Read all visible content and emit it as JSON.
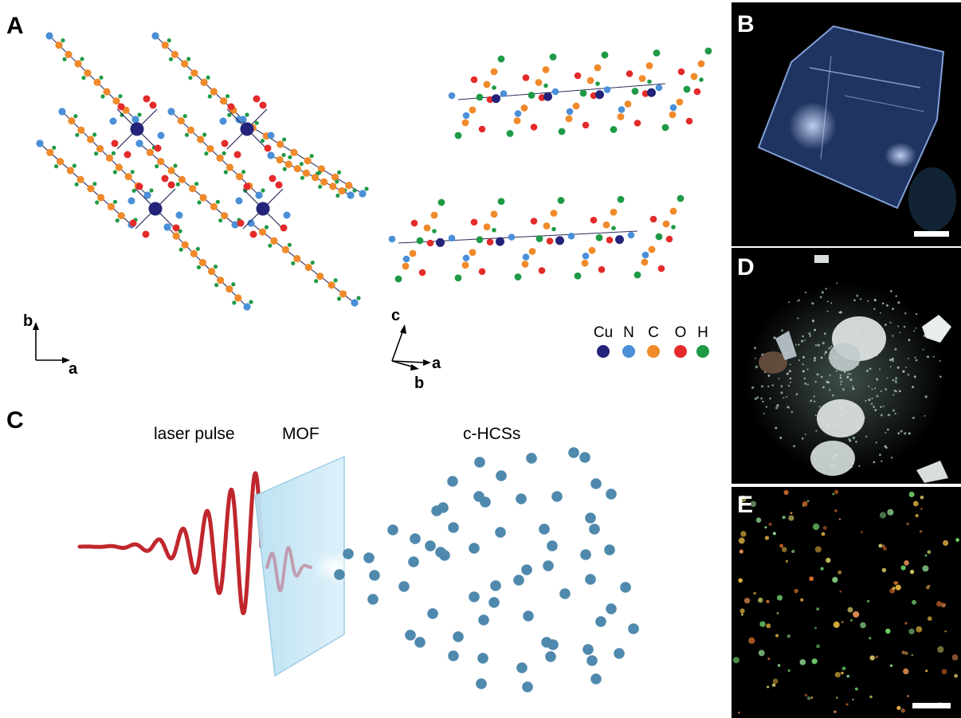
{
  "panels": {
    "A": {
      "letter": "A"
    },
    "B": {
      "letter": "B"
    },
    "C": {
      "letter": "C"
    },
    "D": {
      "letter": "D"
    },
    "E": {
      "letter": "E"
    }
  },
  "axes_left": {
    "vertical": "b",
    "horizontal": "a"
  },
  "axes_right": {
    "up": "c",
    "right": "a",
    "down": "b"
  },
  "legend": [
    {
      "label": "Cu",
      "color": "#23237a"
    },
    {
      "label": "N",
      "color": "#4a8fd8"
    },
    {
      "label": "C",
      "color": "#f08a2a"
    },
    {
      "label": "O",
      "color": "#e42a2a"
    },
    {
      "label": "H",
      "color": "#1e9a46"
    }
  ],
  "schematic": {
    "laser_label": "laser pulse",
    "mof_label": "MOF",
    "product_label": "c-HCSs",
    "laser_color": "#c0272d",
    "particle_color": "#4f89ad",
    "glass_color": "#b9e0f2"
  },
  "micrographs": {
    "background": "#000000",
    "crystal_color": "#7ea8e8"
  }
}
